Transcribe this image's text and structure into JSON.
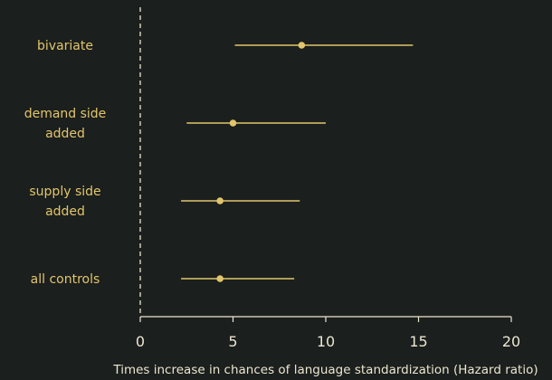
{
  "chart_data": {
    "type": "forest",
    "title": "",
    "xlabel": "Times increase in chances of language standardization (Hazard ratio)",
    "ylabel": "",
    "xlim": [
      0,
      20
    ],
    "xticks": [
      0,
      5,
      10,
      15,
      20
    ],
    "reference_line": 0,
    "grid": false,
    "colors": {
      "background": "#1b1f1d",
      "marker": "#e2c56c",
      "axis": "#ece6d2"
    },
    "rows": [
      {
        "label": [
          "bivariate"
        ],
        "estimate": 8.7,
        "lower": 5.1,
        "upper": 14.7
      },
      {
        "label": [
          "demand side",
          "added"
        ],
        "estimate": 5.0,
        "lower": 2.5,
        "upper": 10.0
      },
      {
        "label": [
          "supply side",
          "added"
        ],
        "estimate": 4.3,
        "lower": 2.2,
        "upper": 8.6
      },
      {
        "label": [
          "all controls"
        ],
        "estimate": 4.3,
        "lower": 2.2,
        "upper": 8.3
      }
    ]
  }
}
